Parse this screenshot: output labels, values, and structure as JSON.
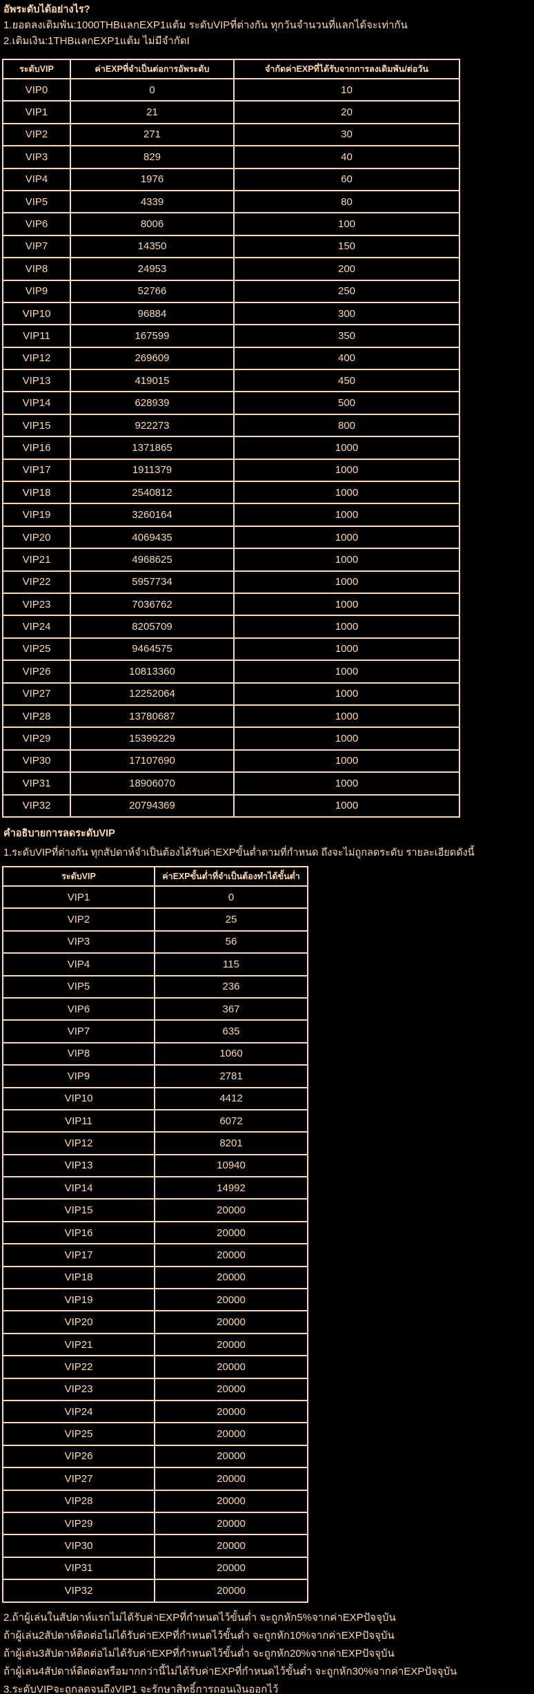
{
  "page": {
    "background_color": "#000000",
    "text_color": "#fcd9b0",
    "border_color": "#fcd9b0"
  },
  "intro": {
    "title": "อัพระดับได้อย่างไร?",
    "lines": [
      "1.ยอดลงเดิมพัน:1000THBแลกEXP1แต้ม ระดับVIPที่ต่างกัน ทุกวันจำนวนที่แลกได้จะเท่ากัน",
      "2.เติมเงิน:1THBแลกEXP1แต้ม ไม่มีจำกัดI"
    ]
  },
  "upgrade_table": {
    "headers": [
      "ระดับVIP",
      "ค่าEXPที่จำเป็นต่อการอัพระดับ",
      "จำกัดค่าEXPที่ได้รับจากการลงเดิมพัน/ต่อวัน"
    ],
    "rows": [
      [
        "VIP0",
        "0",
        "10"
      ],
      [
        "VIP1",
        "21",
        "20"
      ],
      [
        "VIP2",
        "271",
        "30"
      ],
      [
        "VIP3",
        "829",
        "40"
      ],
      [
        "VIP4",
        "1976",
        "60"
      ],
      [
        "VIP5",
        "4339",
        "80"
      ],
      [
        "VIP6",
        "8006",
        "100"
      ],
      [
        "VIP7",
        "14350",
        "150"
      ],
      [
        "VIP8",
        "24953",
        "200"
      ],
      [
        "VIP9",
        "52766",
        "250"
      ],
      [
        "VIP10",
        "96884",
        "300"
      ],
      [
        "VIP11",
        "167599",
        "350"
      ],
      [
        "VIP12",
        "269609",
        "400"
      ],
      [
        "VIP13",
        "419015",
        "450"
      ],
      [
        "VIP14",
        "628939",
        "500"
      ],
      [
        "VIP15",
        "922273",
        "800"
      ],
      [
        "VIP16",
        "1371865",
        "1000"
      ],
      [
        "VIP17",
        "1911379",
        "1000"
      ],
      [
        "VIP18",
        "2540812",
        "1000"
      ],
      [
        "VIP19",
        "3260164",
        "1000"
      ],
      [
        "VIP20",
        "4069435",
        "1000"
      ],
      [
        "VIP21",
        "4968625",
        "1000"
      ],
      [
        "VIP22",
        "5957734",
        "1000"
      ],
      [
        "VIP23",
        "7036762",
        "1000"
      ],
      [
        "VIP24",
        "8205709",
        "1000"
      ],
      [
        "VIP25",
        "9464575",
        "1000"
      ],
      [
        "VIP26",
        "10813360",
        "1000"
      ],
      [
        "VIP27",
        "12252064",
        "1000"
      ],
      [
        "VIP28",
        "13780687",
        "1000"
      ],
      [
        "VIP29",
        "15399229",
        "1000"
      ],
      [
        "VIP30",
        "17107690",
        "1000"
      ],
      [
        "VIP31",
        "18906070",
        "1000"
      ],
      [
        "VIP32",
        "20794369",
        "1000"
      ]
    ]
  },
  "downgrade_section": {
    "title": "คำอธิบายการลดระดับVIP",
    "description": "1.ระดับVIPที่ต่างกัน ทุกสัปดาห์จำเป็นต้องได้รับค่าEXPขั้นต่ำตามที่กำหนด ถึงจะไม่ถูกลดระดับ รายละเอียดดังนี้",
    "table": {
      "headers": [
        "ระดับVIP",
        "ค่าEXPขั้นต่ำที่จำเป็นต้องทำได้ขั้นต่ำ"
      ],
      "rows": [
        [
          "VIP1",
          "0"
        ],
        [
          "VIP2",
          "25"
        ],
        [
          "VIP3",
          "56"
        ],
        [
          "VIP4",
          "115"
        ],
        [
          "VIP5",
          "236"
        ],
        [
          "VIP6",
          "367"
        ],
        [
          "VIP7",
          "635"
        ],
        [
          "VIP8",
          "1060"
        ],
        [
          "VIP9",
          "2781"
        ],
        [
          "VIP10",
          "4412"
        ],
        [
          "VIP11",
          "6072"
        ],
        [
          "VIP12",
          "8201"
        ],
        [
          "VIP13",
          "10940"
        ],
        [
          "VIP14",
          "14992"
        ],
        [
          "VIP15",
          "20000"
        ],
        [
          "VIP16",
          "20000"
        ],
        [
          "VIP17",
          "20000"
        ],
        [
          "VIP18",
          "20000"
        ],
        [
          "VIP19",
          "20000"
        ],
        [
          "VIP20",
          "20000"
        ],
        [
          "VIP21",
          "20000"
        ],
        [
          "VIP22",
          "20000"
        ],
        [
          "VIP23",
          "20000"
        ],
        [
          "VIP24",
          "20000"
        ],
        [
          "VIP25",
          "20000"
        ],
        [
          "VIP26",
          "20000"
        ],
        [
          "VIP27",
          "20000"
        ],
        [
          "VIP28",
          "20000"
        ],
        [
          "VIP29",
          "20000"
        ],
        [
          "VIP30",
          "20000"
        ],
        [
          "VIP31",
          "20000"
        ],
        [
          "VIP32",
          "20000"
        ]
      ]
    },
    "notes": [
      "2.ถ้าผู้เล่นในสัปดาห์แรกไม่ได้รับค่าEXPที่กำหนดไว้ขั้นต่ำ จะถูกหัก5%จากค่าEXPปัจจุบัน",
      "ถ้าผู้เล่น2สัปดาห์ติดต่อไม่ได้รับค่าEXPที่กำหนดไว้ขั้นต่ำ จะถูกหัก10%จากค่าEXPปัจจุบัน",
      "ถ้าผู้เล่น3สัปดาห์ติดต่อไม่ได้รับค่าEXPที่กำหนดไว้ขั้นต่ำ จะถูกหัก20%จากค่าEXPปัจจุบัน",
      "ถ้าผู้เล่น4สัปดาห์ติดต่อหรือมากกว่านี้ไม่ได้รับค่าEXPที่กำหนดไว้ขั้นต่ำ จะถูกหัก30%จากค่าEXPปัจจุบัน",
      "3.ระดับVIPจะถูกลดจนถึงVIP1 จะรักษาสิทธิ์การถอนเงินออกไว้"
    ]
  }
}
